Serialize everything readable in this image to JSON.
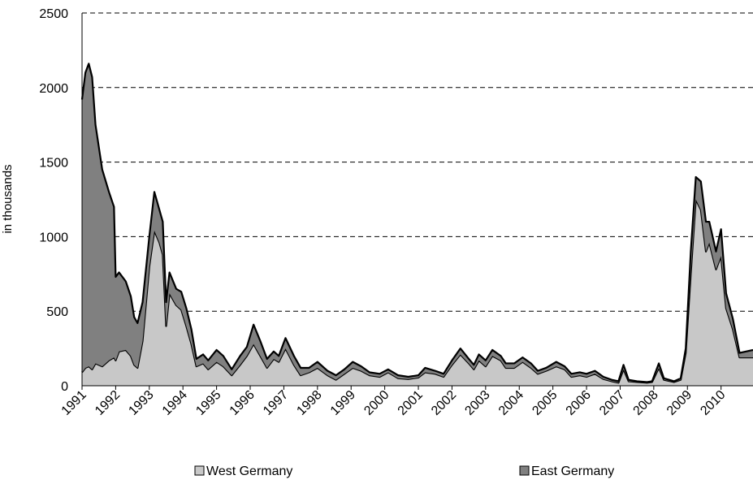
{
  "chart_data": {
    "type": "stacked-area",
    "y_label": "in thousands",
    "x": [
      1991.0,
      1991.1,
      1991.2,
      1991.3,
      1991.4,
      1991.6,
      1991.8,
      1991.95,
      1992.0,
      1992.1,
      1992.3,
      1992.45,
      1992.55,
      1992.65,
      1992.8,
      1993.0,
      1993.15,
      1993.3,
      1993.4,
      1993.5,
      1993.6,
      1993.8,
      1993.95,
      1994.1,
      1994.25,
      1994.4,
      1994.6,
      1994.75,
      1995.0,
      1995.2,
      1995.45,
      1995.7,
      1995.9,
      1996.1,
      1996.3,
      1996.5,
      1996.7,
      1996.85,
      1997.05,
      1997.3,
      1997.5,
      1997.75,
      1998.0,
      1998.3,
      1998.55,
      1998.8,
      1999.05,
      1999.3,
      1999.55,
      1999.85,
      2000.1,
      2000.4,
      2000.7,
      2001.0,
      2001.2,
      2001.5,
      2001.75,
      2002.0,
      2002.25,
      2002.5,
      2002.65,
      2002.8,
      2003.0,
      2003.2,
      2003.45,
      2003.6,
      2003.85,
      2004.1,
      2004.35,
      2004.55,
      2004.8,
      2005.1,
      2005.35,
      2005.55,
      2005.8,
      2006.0,
      2006.25,
      2006.5,
      2006.75,
      2006.95,
      2007.1,
      2007.25,
      2007.5,
      2007.8,
      2007.95,
      2008.15,
      2008.3,
      2008.6,
      2008.8,
      2008.95,
      2009.1,
      2009.25,
      2009.4,
      2009.55,
      2009.65,
      2009.85,
      2010.0,
      2010.15,
      2010.35,
      2010.55,
      2010.95
    ],
    "series": [
      {
        "name": "West Germany",
        "color": "#c8c8c8",
        "values": [
          90,
          120,
          130,
          110,
          150,
          130,
          170,
          190,
          170,
          230,
          240,
          200,
          140,
          120,
          300,
          800,
          1040,
          960,
          880,
          400,
          620,
          540,
          510,
          400,
          280,
          130,
          150,
          110,
          160,
          130,
          70,
          140,
          200,
          280,
          200,
          120,
          180,
          160,
          250,
          140,
          70,
          90,
          120,
          70,
          40,
          80,
          120,
          100,
          70,
          60,
          90,
          50,
          45,
          55,
          90,
          80,
          60,
          140,
          210,
          150,
          110,
          170,
          130,
          200,
          170,
          120,
          120,
          160,
          120,
          80,
          100,
          130,
          110,
          60,
          70,
          60,
          80,
          45,
          30,
          20,
          110,
          30,
          25,
          20,
          25,
          120,
          40,
          25,
          40,
          220,
          750,
          1250,
          1180,
          900,
          960,
          780,
          870,
          520,
          380,
          190,
          190
        ]
      },
      {
        "name": "East Germany",
        "color": "#808080",
        "values": [
          1830,
          1980,
          2030,
          1960,
          1600,
          1320,
          1130,
          1010,
          560,
          530,
          460,
          400,
          320,
          300,
          260,
          200,
          260,
          220,
          220,
          160,
          140,
          110,
          120,
          120,
          100,
          50,
          60,
          60,
          80,
          70,
          40,
          60,
          60,
          130,
          100,
          60,
          50,
          40,
          70,
          60,
          50,
          30,
          40,
          30,
          30,
          30,
          40,
          30,
          20,
          20,
          20,
          20,
          15,
          15,
          30,
          20,
          20,
          30,
          40,
          30,
          30,
          40,
          40,
          40,
          30,
          30,
          30,
          30,
          30,
          20,
          20,
          30,
          20,
          20,
          20,
          20,
          20,
          15,
          10,
          10,
          30,
          10,
          5,
          5,
          5,
          30,
          10,
          5,
          10,
          30,
          150,
          150,
          190,
          200,
          140,
          120,
          180,
          100,
          70,
          30,
          50
        ]
      }
    ],
    "xlim": [
      1991,
      2010.95
    ],
    "xticks": [
      1991,
      1992,
      1993,
      1994,
      1995,
      1996,
      1997,
      1998,
      1999,
      2000,
      2001,
      2002,
      2003,
      2004,
      2005,
      2006,
      2007,
      2008,
      2009,
      2010
    ],
    "ylim": [
      0,
      2500
    ],
    "yticks": [
      0,
      500,
      1000,
      1500,
      2000,
      2500
    ],
    "grid": true
  }
}
